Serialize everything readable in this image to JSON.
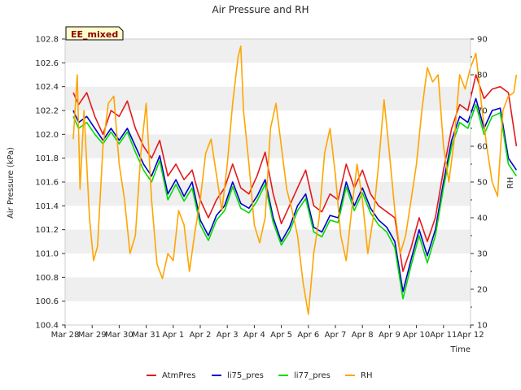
{
  "chart_data": {
    "type": "line",
    "title": "Air Pressure and RH",
    "xlabel": "Time",
    "ylabel_left": "Air Pressure (kPa)",
    "ylabel_right": "RH",
    "site_badge": "EE_mixed",
    "x_ticks": [
      "Mar 28",
      "Mar 29",
      "Mar 30",
      "Mar 31",
      "Apr 1",
      "Apr 2",
      "Apr 3",
      "Apr 4",
      "Apr 5",
      "Apr 6",
      "Apr 7",
      "Apr 8",
      "Apr 9",
      "Apr 10",
      "Apr 11",
      "Apr 12"
    ],
    "xlim_days": [
      0,
      15
    ],
    "ylim_left": [
      100.4,
      102.8
    ],
    "ylim_right": [
      10,
      90
    ],
    "y_ticks_left": [
      "100.4",
      "100.6",
      "100.8",
      "101.0",
      "101.2",
      "101.4",
      "101.6",
      "101.8",
      "102.0",
      "102.2",
      "102.4",
      "102.6",
      "102.8"
    ],
    "y_ticks_right": [
      "10",
      "20",
      "30",
      "40",
      "50",
      "60",
      "70",
      "80",
      "90"
    ],
    "grid": "horizontal bands",
    "legend_position": "bottom",
    "series": [
      {
        "name": "AtmPres",
        "axis": "left",
        "color": "#e31a1c",
        "points": [
          [
            0.3,
            102.35
          ],
          [
            0.5,
            102.25
          ],
          [
            0.8,
            102.35
          ],
          [
            1.1,
            102.15
          ],
          [
            1.4,
            102.0
          ],
          [
            1.7,
            102.2
          ],
          [
            2.0,
            102.15
          ],
          [
            2.3,
            102.28
          ],
          [
            2.6,
            102.05
          ],
          [
            2.9,
            101.9
          ],
          [
            3.2,
            101.8
          ],
          [
            3.5,
            101.95
          ],
          [
            3.8,
            101.65
          ],
          [
            4.1,
            101.75
          ],
          [
            4.4,
            101.62
          ],
          [
            4.7,
            101.7
          ],
          [
            5.0,
            101.45
          ],
          [
            5.3,
            101.3
          ],
          [
            5.6,
            101.45
          ],
          [
            5.9,
            101.55
          ],
          [
            6.2,
            101.75
          ],
          [
            6.5,
            101.55
          ],
          [
            6.8,
            101.5
          ],
          [
            7.1,
            101.65
          ],
          [
            7.4,
            101.85
          ],
          [
            7.7,
            101.5
          ],
          [
            8.0,
            101.25
          ],
          [
            8.3,
            101.4
          ],
          [
            8.6,
            101.55
          ],
          [
            8.9,
            101.7
          ],
          [
            9.2,
            101.4
          ],
          [
            9.5,
            101.35
          ],
          [
            9.8,
            101.5
          ],
          [
            10.1,
            101.45
          ],
          [
            10.4,
            101.75
          ],
          [
            10.7,
            101.55
          ],
          [
            11.0,
            101.7
          ],
          [
            11.3,
            101.5
          ],
          [
            11.6,
            101.4
          ],
          [
            11.9,
            101.35
          ],
          [
            12.2,
            101.3
          ],
          [
            12.5,
            100.85
          ],
          [
            12.8,
            101.05
          ],
          [
            13.1,
            101.3
          ],
          [
            13.4,
            101.1
          ],
          [
            13.7,
            101.3
          ],
          [
            14.0,
            101.7
          ],
          [
            14.3,
            102.05
          ],
          [
            14.6,
            102.25
          ],
          [
            14.9,
            102.2
          ],
          [
            15.2,
            102.5
          ],
          [
            15.5,
            102.3
          ],
          [
            15.8,
            102.38
          ],
          [
            16.1,
            102.4
          ],
          [
            16.4,
            102.35
          ],
          [
            16.7,
            101.9
          ]
        ]
      },
      {
        "name": "li75_pres",
        "axis": "left",
        "color": "#0000cc",
        "points": [
          [
            0.3,
            102.2
          ],
          [
            0.5,
            102.1
          ],
          [
            0.8,
            102.15
          ],
          [
            1.1,
            102.05
          ],
          [
            1.4,
            101.95
          ],
          [
            1.7,
            102.05
          ],
          [
            2.0,
            101.95
          ],
          [
            2.3,
            102.05
          ],
          [
            2.6,
            101.9
          ],
          [
            2.9,
            101.75
          ],
          [
            3.2,
            101.65
          ],
          [
            3.5,
            101.82
          ],
          [
            3.8,
            101.5
          ],
          [
            4.1,
            101.62
          ],
          [
            4.4,
            101.48
          ],
          [
            4.7,
            101.6
          ],
          [
            5.0,
            101.28
          ],
          [
            5.3,
            101.15
          ],
          [
            5.6,
            101.32
          ],
          [
            5.9,
            101.4
          ],
          [
            6.2,
            101.6
          ],
          [
            6.5,
            101.42
          ],
          [
            6.8,
            101.38
          ],
          [
            7.1,
            101.48
          ],
          [
            7.4,
            101.62
          ],
          [
            7.7,
            101.3
          ],
          [
            8.0,
            101.1
          ],
          [
            8.3,
            101.22
          ],
          [
            8.6,
            101.4
          ],
          [
            8.9,
            101.5
          ],
          [
            9.2,
            101.22
          ],
          [
            9.5,
            101.18
          ],
          [
            9.8,
            101.32
          ],
          [
            10.1,
            101.3
          ],
          [
            10.4,
            101.6
          ],
          [
            10.7,
            101.4
          ],
          [
            11.0,
            101.55
          ],
          [
            11.3,
            101.38
          ],
          [
            11.6,
            101.28
          ],
          [
            11.9,
            101.22
          ],
          [
            12.2,
            101.1
          ],
          [
            12.5,
            100.68
          ],
          [
            12.8,
            100.95
          ],
          [
            13.1,
            101.2
          ],
          [
            13.4,
            100.98
          ],
          [
            13.7,
            101.2
          ],
          [
            14.0,
            101.6
          ],
          [
            14.3,
            101.95
          ],
          [
            14.6,
            102.15
          ],
          [
            14.9,
            102.1
          ],
          [
            15.2,
            102.3
          ],
          [
            15.5,
            102.05
          ],
          [
            15.8,
            102.2
          ],
          [
            16.1,
            102.22
          ],
          [
            16.4,
            101.8
          ],
          [
            16.7,
            101.7
          ]
        ]
      },
      {
        "name": "li77_pres",
        "axis": "left",
        "color": "#00dd00",
        "points": [
          [
            0.3,
            102.15
          ],
          [
            0.5,
            102.05
          ],
          [
            0.8,
            102.1
          ],
          [
            1.1,
            102.0
          ],
          [
            1.4,
            101.92
          ],
          [
            1.7,
            102.02
          ],
          [
            2.0,
            101.92
          ],
          [
            2.3,
            102.02
          ],
          [
            2.6,
            101.85
          ],
          [
            2.9,
            101.7
          ],
          [
            3.2,
            101.6
          ],
          [
            3.5,
            101.78
          ],
          [
            3.8,
            101.45
          ],
          [
            4.1,
            101.58
          ],
          [
            4.4,
            101.44
          ],
          [
            4.7,
            101.55
          ],
          [
            5.0,
            101.24
          ],
          [
            5.3,
            101.11
          ],
          [
            5.6,
            101.28
          ],
          [
            5.9,
            101.36
          ],
          [
            6.2,
            101.56
          ],
          [
            6.5,
            101.38
          ],
          [
            6.8,
            101.34
          ],
          [
            7.1,
            101.44
          ],
          [
            7.4,
            101.58
          ],
          [
            7.7,
            101.26
          ],
          [
            8.0,
            101.07
          ],
          [
            8.3,
            101.18
          ],
          [
            8.6,
            101.36
          ],
          [
            8.9,
            101.46
          ],
          [
            9.2,
            101.18
          ],
          [
            9.5,
            101.14
          ],
          [
            9.8,
            101.28
          ],
          [
            10.1,
            101.26
          ],
          [
            10.4,
            101.56
          ],
          [
            10.7,
            101.36
          ],
          [
            11.0,
            101.51
          ],
          [
            11.3,
            101.34
          ],
          [
            11.6,
            101.24
          ],
          [
            11.9,
            101.18
          ],
          [
            12.2,
            101.05
          ],
          [
            12.5,
            100.62
          ],
          [
            12.8,
            100.9
          ],
          [
            13.1,
            101.15
          ],
          [
            13.4,
            100.92
          ],
          [
            13.7,
            101.15
          ],
          [
            14.0,
            101.55
          ],
          [
            14.3,
            101.9
          ],
          [
            14.6,
            102.1
          ],
          [
            14.9,
            102.05
          ],
          [
            15.2,
            102.25
          ],
          [
            15.5,
            102.0
          ],
          [
            15.8,
            102.15
          ],
          [
            16.1,
            102.18
          ],
          [
            16.4,
            101.75
          ],
          [
            16.7,
            101.65
          ]
        ]
      },
      {
        "name": "RH",
        "axis": "right",
        "color": "#ffa500",
        "points": [
          [
            0.3,
            62
          ],
          [
            0.45,
            80
          ],
          [
            0.55,
            48
          ],
          [
            0.7,
            70
          ],
          [
            0.9,
            40
          ],
          [
            1.05,
            28
          ],
          [
            1.2,
            32
          ],
          [
            1.4,
            60
          ],
          [
            1.6,
            72
          ],
          [
            1.8,
            74
          ],
          [
            2.0,
            55
          ],
          [
            2.2,
            45
          ],
          [
            2.4,
            30
          ],
          [
            2.6,
            35
          ],
          [
            2.8,
            58
          ],
          [
            3.0,
            72
          ],
          [
            3.2,
            45
          ],
          [
            3.4,
            27
          ],
          [
            3.6,
            23
          ],
          [
            3.8,
            30
          ],
          [
            4.0,
            28
          ],
          [
            4.2,
            42
          ],
          [
            4.4,
            38
          ],
          [
            4.6,
            25
          ],
          [
            4.8,
            36
          ],
          [
            5.0,
            45
          ],
          [
            5.2,
            58
          ],
          [
            5.4,
            62
          ],
          [
            5.6,
            52
          ],
          [
            5.8,
            42
          ],
          [
            6.0,
            55
          ],
          [
            6.2,
            72
          ],
          [
            6.4,
            85
          ],
          [
            6.5,
            88
          ],
          [
            6.6,
            70
          ],
          [
            6.8,
            55
          ],
          [
            7.0,
            38
          ],
          [
            7.2,
            33
          ],
          [
            7.4,
            40
          ],
          [
            7.6,
            65
          ],
          [
            7.8,
            72
          ],
          [
            8.0,
            60
          ],
          [
            8.2,
            48
          ],
          [
            8.4,
            42
          ],
          [
            8.6,
            35
          ],
          [
            8.8,
            22
          ],
          [
            9.0,
            13
          ],
          [
            9.2,
            30
          ],
          [
            9.4,
            40
          ],
          [
            9.6,
            58
          ],
          [
            9.8,
            65
          ],
          [
            10.0,
            52
          ],
          [
            10.2,
            35
          ],
          [
            10.4,
            28
          ],
          [
            10.6,
            42
          ],
          [
            10.8,
            55
          ],
          [
            11.0,
            45
          ],
          [
            11.2,
            30
          ],
          [
            11.4,
            40
          ],
          [
            11.6,
            55
          ],
          [
            11.8,
            73
          ],
          [
            12.0,
            58
          ],
          [
            12.2,
            42
          ],
          [
            12.4,
            30
          ],
          [
            12.6,
            35
          ],
          [
            12.8,
            45
          ],
          [
            13.0,
            55
          ],
          [
            13.2,
            70
          ],
          [
            13.4,
            82
          ],
          [
            13.6,
            78
          ],
          [
            13.8,
            80
          ],
          [
            14.0,
            60
          ],
          [
            14.2,
            50
          ],
          [
            14.4,
            62
          ],
          [
            14.6,
            80
          ],
          [
            14.8,
            76
          ],
          [
            15.0,
            82
          ],
          [
            15.2,
            86
          ],
          [
            15.4,
            72
          ],
          [
            15.6,
            60
          ],
          [
            15.8,
            50
          ],
          [
            16.0,
            46
          ],
          [
            16.2,
            70
          ],
          [
            16.4,
            74
          ],
          [
            16.6,
            75
          ],
          [
            16.7,
            80
          ]
        ]
      }
    ]
  }
}
